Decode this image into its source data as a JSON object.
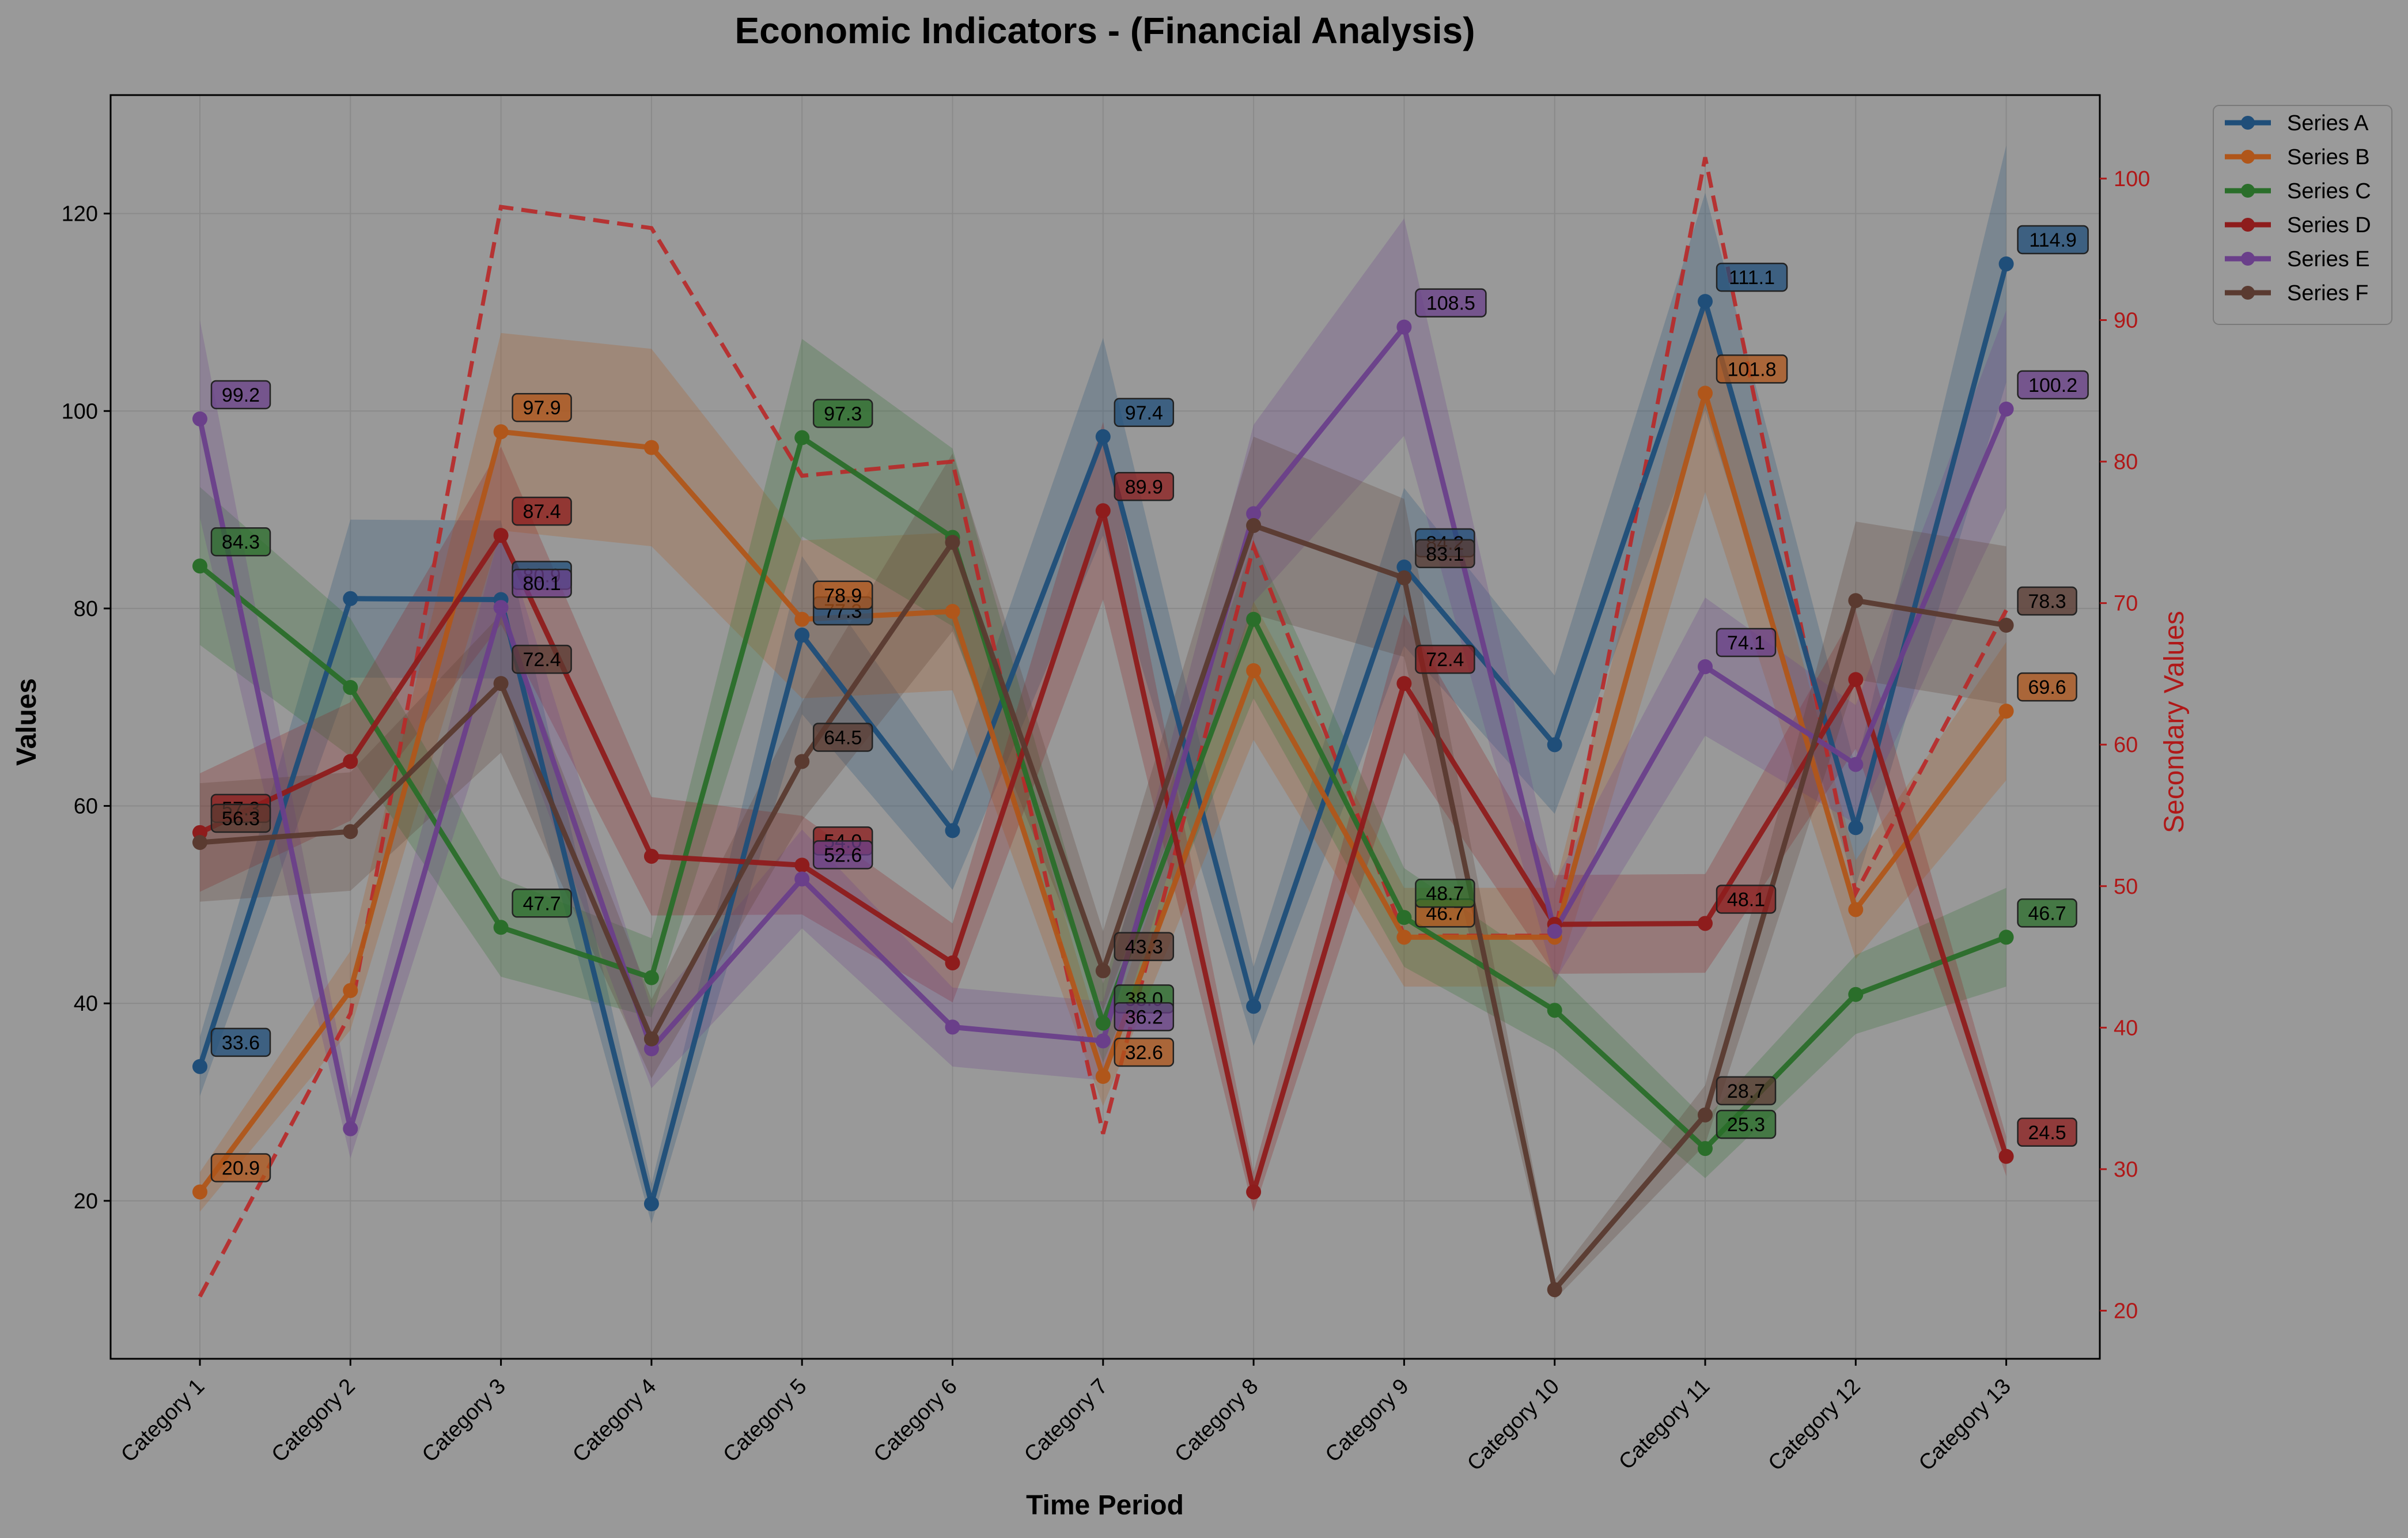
{
  "chart_data": {
    "type": "line",
    "title": "Economic Indicators - (Financial Analysis)",
    "xlabel": "Time Period",
    "ylabel": "Values",
    "y2label": "Secondary Values",
    "categories": [
      "Category 1",
      "Category 2",
      "Category 3",
      "Category 4",
      "Category 5",
      "Category 6",
      "Category 7",
      "Category 8",
      "Category 9",
      "Category 10",
      "Category 11",
      "Category 12",
      "Category 13"
    ],
    "ylim": [
      4,
      132
    ],
    "y2lim": [
      16.6,
      105.9
    ],
    "yticks": [
      20,
      40,
      60,
      80,
      100,
      120
    ],
    "y2ticks": [
      20,
      30,
      40,
      50,
      60,
      70,
      80,
      90,
      100
    ],
    "grid": true,
    "legend_position": "outside top-right",
    "series": [
      {
        "name": "Series A",
        "color": "#1f4e79",
        "values": [
          33.6,
          81.0,
          80.9,
          19.7,
          77.3,
          57.5,
          97.4,
          39.7,
          84.2,
          66.2,
          111.1,
          57.8,
          114.9
        ],
        "band": [
          3,
          8,
          8,
          2,
          8,
          6,
          10,
          4,
          8,
          7,
          11,
          6,
          12
        ]
      },
      {
        "name": "Series B",
        "color": "#b0561a",
        "values": [
          20.9,
          41.3,
          97.9,
          96.3,
          78.9,
          79.7,
          32.6,
          73.7,
          46.7,
          46.7,
          101.8,
          49.5,
          69.6
        ],
        "band": [
          2,
          4,
          10,
          10,
          8,
          8,
          3,
          7,
          5,
          5,
          10,
          5,
          7
        ]
      },
      {
        "name": "Series C",
        "color": "#2a6e2a",
        "values": [
          84.3,
          72.0,
          47.7,
          42.6,
          97.3,
          87.2,
          38.0,
          78.9,
          48.7,
          39.3,
          25.3,
          40.9,
          46.7
        ],
        "band": [
          8,
          7,
          5,
          4,
          10,
          9,
          4,
          8,
          5,
          4,
          3,
          4,
          5
        ]
      },
      {
        "name": "Series D",
        "color": "#8e1c1c",
        "values": [
          57.3,
          64.5,
          87.4,
          54.9,
          54.0,
          44.1,
          89.9,
          20.9,
          72.4,
          48.0,
          48.1,
          72.8,
          24.5
        ],
        "band": [
          6,
          6,
          9,
          6,
          5,
          4,
          9,
          2,
          7,
          5,
          5,
          7,
          2
        ]
      },
      {
        "name": "Series E",
        "color": "#6a3f8a",
        "values": [
          99.2,
          27.3,
          80.1,
          35.4,
          52.6,
          37.6,
          36.2,
          89.6,
          108.5,
          47.3,
          74.1,
          64.2,
          100.2
        ],
        "band": [
          10,
          3,
          8,
          4,
          5,
          4,
          4,
          9,
          11,
          5,
          7,
          6,
          10
        ]
      },
      {
        "name": "Series F",
        "color": "#5a3a30",
        "values": [
          56.3,
          57.4,
          72.4,
          36.4,
          64.5,
          86.7,
          43.3,
          88.4,
          83.1,
          11.0,
          28.7,
          80.8,
          78.3
        ],
        "band": [
          6,
          6,
          7,
          4,
          6,
          9,
          4,
          9,
          8,
          1,
          3,
          8,
          8
        ]
      }
    ],
    "secondary_series": {
      "style": "dashed",
      "color": "#b82828",
      "values": [
        21.0,
        41.0,
        98.0,
        96.5,
        79.0,
        80.0,
        32.5,
        74.0,
        46.5,
        46.5,
        101.5,
        49.5,
        69.5
      ]
    }
  }
}
